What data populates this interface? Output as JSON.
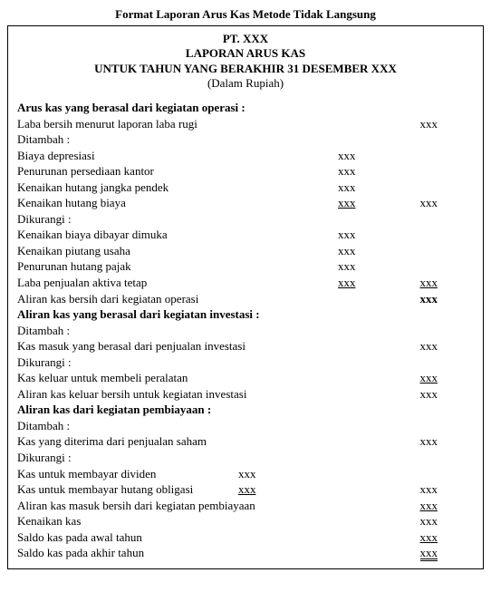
{
  "doc_title": "Format Laporan Arus Kas Metode Tidak Langsung",
  "header": {
    "company": "PT. XXX",
    "report_title": "LAPORAN ARUS KAS",
    "period": "UNTUK TAHUN YANG BERAKHIR 31 DESEMBER XXX",
    "currency": "(Dalam Rupiah)"
  },
  "ph": "xxx",
  "rows": {
    "op_heading": "Arus kas yang berasal dari kegiatan operasi :",
    "laba_bersih": "Laba bersih menurut laporan laba rugi",
    "ditambah": "Ditambah :",
    "biaya_depresiasi": "Biaya depresiasi",
    "penurunan_persediaan": "Penurunan persediaan kantor",
    "kenaikan_hutang_pendek": "Kenaikan hutang jangka pendek",
    "kenaikan_hutang_biaya": "Kenaikan hutang biaya",
    "dikurangi": "Dikurangi :",
    "kenaikan_biaya_dimuka": "Kenaikan biaya dibayar dimuka",
    "kenaikan_piutang_usaha": "Kenaikan piutang usaha",
    "penurunan_hutang_pajak": "Penurunan hutang pajak",
    "laba_penjualan_aktiva": "Laba penjualan aktiva tetap",
    "aliran_kas_operasi": "Aliran kas bersih dari kegiatan operasi",
    "inv_heading": "Aliran kas yang berasal dari kegiatan investasi :",
    "kas_masuk_investasi": "Kas masuk yang berasal dari penjualan investasi",
    "kas_keluar_peralatan": "Kas keluar untuk membeli peralatan",
    "aliran_kas_investasi": "Aliran kas keluar bersih untuk kegiatan investasi",
    "fin_heading": "Aliran kas dari kegiatan pembiayaan :",
    "kas_penjualan_saham": "Kas yang diterima dari penjualan saham",
    "kas_dividen": "Kas untuk membayar dividen",
    "kas_obligasi": "Kas untuk membayar hutang obligasi",
    "aliran_kas_pembiayaan": "Aliran kas masuk bersih dari kegiatan pembiayaan",
    "kenaikan_kas": "Kenaikan kas",
    "saldo_awal": "Saldo kas pada awal tahun",
    "saldo_akhir": "Saldo kas pada akhir tahun"
  }
}
